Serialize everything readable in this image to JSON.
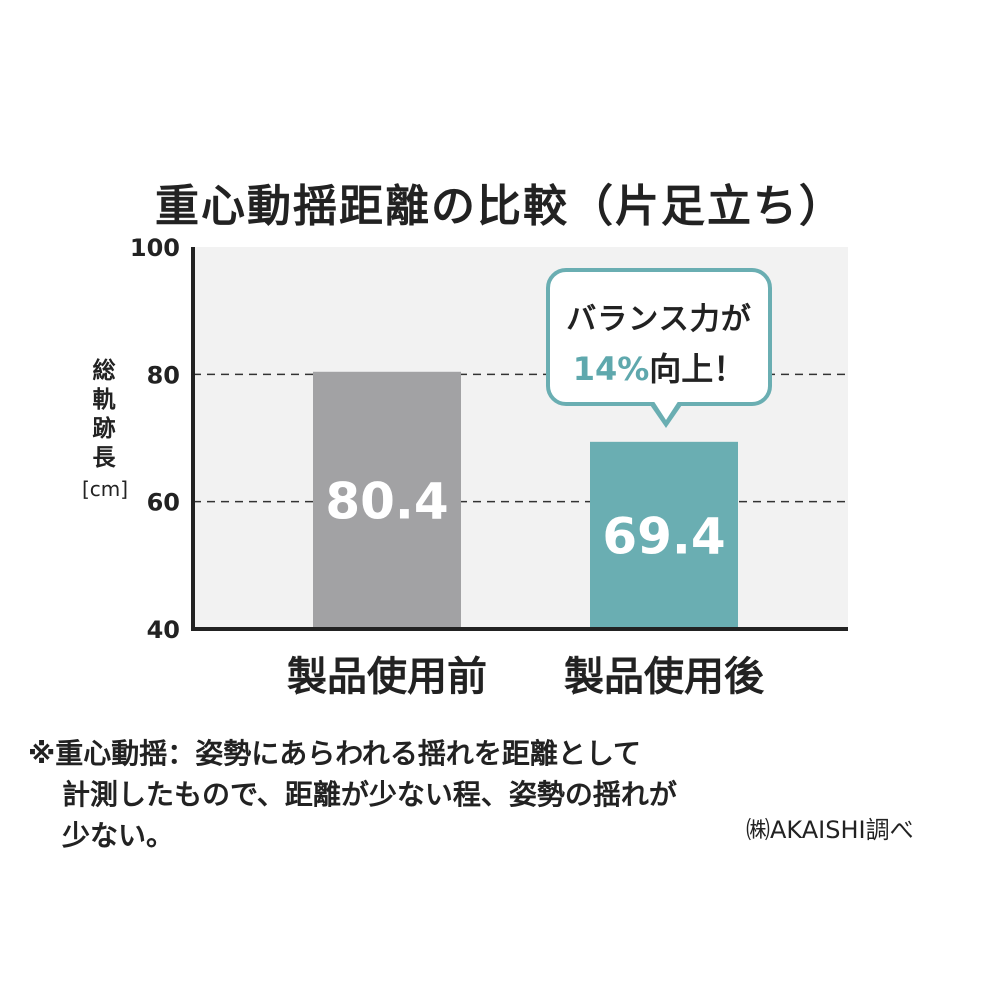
{
  "chart_data": {
    "type": "bar",
    "title": "重心動揺距離の比較（片足立ち）",
    "ylabel_chars": [
      "総",
      "軌",
      "跡",
      "長"
    ],
    "ylabel_unit": "[cm]",
    "ylim": [
      40,
      100
    ],
    "yticks": [
      40,
      60,
      80,
      100
    ],
    "gridlines": [
      60,
      80
    ],
    "categories": [
      "製品使用前",
      "製品使用後"
    ],
    "values": [
      80.4,
      69.4
    ],
    "value_labels": [
      "80.4",
      "69.4"
    ],
    "colors": [
      "#a2a2a4",
      "#6aaeb2"
    ]
  },
  "callout": {
    "line1": "バランス力が",
    "percent": "14%",
    "suffix": "向上！"
  },
  "footnote": {
    "line1": "※重心動揺：姿勢にあらわれる揺れを距離として",
    "line2": "計測したもので、距離が少ない程、姿勢の揺れが",
    "line3": "少ない。"
  },
  "source": "㈱AKAISHI調べ",
  "colors": {
    "plot_bg": "#f2f2f2",
    "axis": "#222222",
    "accent": "#6aaeb2"
  }
}
